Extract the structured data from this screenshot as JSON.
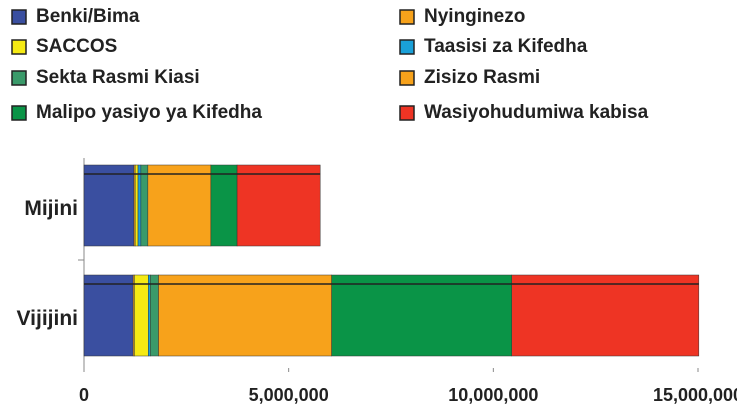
{
  "chart_data": {
    "type": "stacked_barh",
    "categories": [
      "Mijini",
      "Vijijini"
    ],
    "series": [
      {
        "name": "Benki/Bima",
        "color": "#3a4fa0",
        "values": [
          1220000,
          1200000
        ]
      },
      {
        "name": "Nyinginezo",
        "color": "#f7a21b",
        "values": [
          30000,
          30000
        ]
      },
      {
        "name": "SACCOS",
        "color": "#f5ea14",
        "values": [
          70000,
          340000
        ]
      },
      {
        "name": "Taasisi za Kifedha",
        "color": "#1aa0d8",
        "values": [
          70000,
          50000
        ]
      },
      {
        "name": "Sekta Rasmi Kiasi",
        "color": "#3a9a6a",
        "values": [
          170000,
          200000
        ]
      },
      {
        "name": "Zisizo Rasmi",
        "color": "#f7a21b",
        "values": [
          1540000,
          4230000
        ]
      },
      {
        "name": "Malipo yasiyo ya Kifedha",
        "color": "#0a9447",
        "values": [
          640000,
          4400000
        ]
      },
      {
        "name": "Wasiyohudumiwa kabisa",
        "color": "#ee3424",
        "values": [
          2030000,
          4570000
        ]
      }
    ],
    "xlim": [
      0,
      15000000
    ],
    "xticks": [
      0,
      {
        "value": 5000000,
        "label": "5,000,000"
      },
      {
        "value": 10000000,
        "label": "10,000,000"
      },
      {
        "value": 15000000,
        "label": "15,000,000"
      }
    ]
  }
}
